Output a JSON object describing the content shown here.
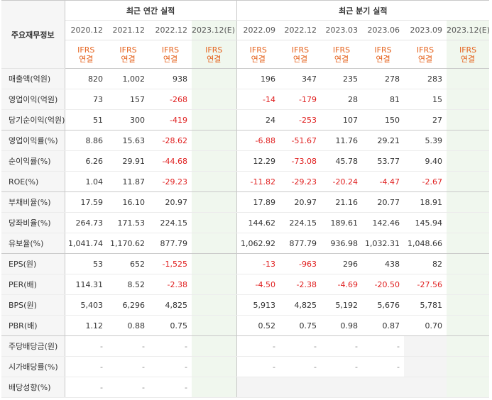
{
  "header": {
    "corner_label": "주요재무정보",
    "annual_title": "최근 연간 실적",
    "quarter_title": "최근 분기 실적",
    "annual_periods": [
      "2020.12",
      "2021.12",
      "2022.12",
      "2023.12(E)"
    ],
    "quarter_periods": [
      "2022.09",
      "2022.12",
      "2023.03",
      "2023.06",
      "2023.09",
      "2023.12(E)"
    ],
    "standard_line1": "IFRS",
    "standard_line2": "연결"
  },
  "rows": [
    {
      "label": "매출액(억원)",
      "annual": [
        "820",
        "1,002",
        "938",
        ""
      ],
      "quarter": [
        "196",
        "347",
        "235",
        "278",
        "283",
        ""
      ]
    },
    {
      "label": "영업이익(억원)",
      "annual": [
        "73",
        "157",
        "-268",
        ""
      ],
      "quarter": [
        "-14",
        "-179",
        "28",
        "81",
        "15",
        ""
      ]
    },
    {
      "label": "당기순이익(억원)",
      "annual": [
        "51",
        "300",
        "-419",
        ""
      ],
      "quarter": [
        "24",
        "-253",
        "107",
        "150",
        "27",
        ""
      ]
    },
    {
      "label": "영업이익률(%)",
      "annual": [
        "8.86",
        "15.63",
        "-28.62",
        ""
      ],
      "quarter": [
        "-6.88",
        "-51.67",
        "11.76",
        "29.21",
        "5.39",
        ""
      ]
    },
    {
      "label": "순이익률(%)",
      "annual": [
        "6.26",
        "29.91",
        "-44.68",
        ""
      ],
      "quarter": [
        "12.29",
        "-73.08",
        "45.78",
        "53.77",
        "9.40",
        ""
      ]
    },
    {
      "label": "ROE(%)",
      "annual": [
        "1.04",
        "11.87",
        "-29.23",
        ""
      ],
      "quarter": [
        "-11.82",
        "-29.23",
        "-20.24",
        "-4.47",
        "-2.67",
        ""
      ]
    },
    {
      "label": "부채비율(%)",
      "annual": [
        "17.59",
        "16.10",
        "20.97",
        ""
      ],
      "quarter": [
        "17.89",
        "20.97",
        "21.16",
        "20.77",
        "18.91",
        ""
      ]
    },
    {
      "label": "당좌비율(%)",
      "annual": [
        "264.73",
        "171.53",
        "224.15",
        ""
      ],
      "quarter": [
        "144.62",
        "224.15",
        "189.61",
        "142.46",
        "145.94",
        ""
      ]
    },
    {
      "label": "유보율(%)",
      "annual": [
        "1,041.74",
        "1,170.62",
        "877.79",
        ""
      ],
      "quarter": [
        "1,062.92",
        "877.79",
        "936.98",
        "1,032.31",
        "1,048.66",
        ""
      ]
    },
    {
      "label": "EPS(원)",
      "annual": [
        "53",
        "652",
        "-1,525",
        ""
      ],
      "quarter": [
        "-13",
        "-963",
        "296",
        "438",
        "82",
        ""
      ]
    },
    {
      "label": "PER(배)",
      "annual": [
        "114.31",
        "8.52",
        "-2.38",
        ""
      ],
      "quarter": [
        "-4.50",
        "-2.38",
        "-4.69",
        "-20.50",
        "-27.56",
        ""
      ]
    },
    {
      "label": "BPS(원)",
      "annual": [
        "5,403",
        "6,296",
        "4,825",
        ""
      ],
      "quarter": [
        "5,913",
        "4,825",
        "5,192",
        "5,676",
        "5,781",
        ""
      ]
    },
    {
      "label": "PBR(배)",
      "annual": [
        "1.12",
        "0.88",
        "0.75",
        ""
      ],
      "quarter": [
        "0.52",
        "0.75",
        "0.98",
        "0.87",
        "0.70",
        ""
      ]
    },
    {
      "label": "주당배당금(원)",
      "annual": [
        "-",
        "-",
        "-",
        ""
      ],
      "quarter": [
        "-",
        "-",
        "-",
        "-",
        "",
        ""
      ]
    },
    {
      "label": "시가배당률(%)",
      "annual": [
        "-",
        "-",
        "-",
        ""
      ],
      "quarter": [
        "-",
        "-",
        "-",
        "-",
        "",
        ""
      ]
    },
    {
      "label": "배당성향(%)",
      "annual": [
        "-",
        "-",
        "-",
        ""
      ],
      "quarter": [
        "",
        "",
        "",
        "",
        "",
        ""
      ]
    }
  ]
}
